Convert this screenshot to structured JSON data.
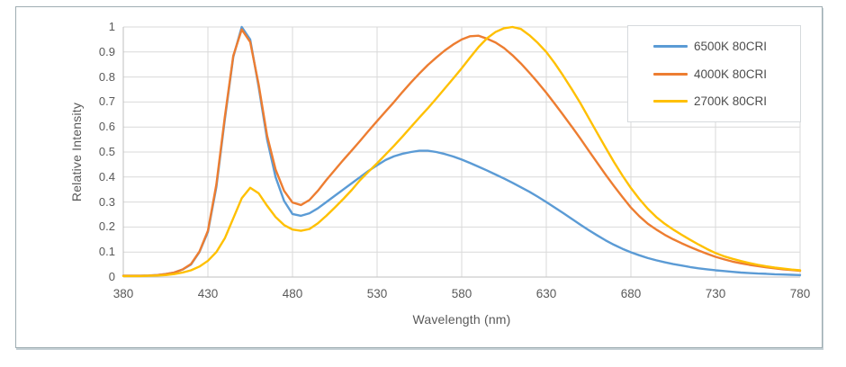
{
  "chart_data": {
    "type": "line",
    "title": "",
    "xlabel": "Wavelength (nm)",
    "ylabel": "Relative Intensity",
    "xlim": [
      380,
      780
    ],
    "ylim": [
      0,
      1
    ],
    "x_step_nm": 5,
    "x_ticks": [
      380,
      430,
      480,
      530,
      580,
      630,
      680,
      730,
      780
    ],
    "y_ticks": [
      "1",
      "0.9",
      "0.8",
      "0.7",
      "0.6",
      "0.5",
      "0.4",
      "0.3",
      "0.2",
      "0.1",
      "0"
    ],
    "grid": true,
    "legend_position": "top-right",
    "style": {
      "grid_color": "#d9d9d9",
      "axis_color": "#bfbfbf",
      "text_color": "#595959",
      "frame_border_color": "#9fadb2",
      "plot_background": "#ffffff"
    },
    "series": [
      {
        "name": "6500K 80CRI",
        "color": "#5B9BD5",
        "values": [
          0.005,
          0.005,
          0.005,
          0.006,
          0.008,
          0.012,
          0.018,
          0.03,
          0.05,
          0.1,
          0.18,
          0.36,
          0.63,
          0.88,
          1.0,
          0.95,
          0.76,
          0.55,
          0.4,
          0.305,
          0.252,
          0.245,
          0.255,
          0.275,
          0.3,
          0.325,
          0.35,
          0.375,
          0.4,
          0.425,
          0.447,
          0.468,
          0.483,
          0.493,
          0.5,
          0.505,
          0.505,
          0.5,
          0.492,
          0.482,
          0.47,
          0.456,
          0.441,
          0.426,
          0.41,
          0.394,
          0.377,
          0.359,
          0.341,
          0.321,
          0.3,
          0.278,
          0.256,
          0.233,
          0.21,
          0.188,
          0.167,
          0.147,
          0.129,
          0.113,
          0.099,
          0.087,
          0.076,
          0.067,
          0.059,
          0.052,
          0.046,
          0.04,
          0.035,
          0.031,
          0.027,
          0.024,
          0.021,
          0.018,
          0.016,
          0.014,
          0.013,
          0.011,
          0.01,
          0.009,
          0.008
        ]
      },
      {
        "name": "4000K 80CRI",
        "color": "#ED7D31",
        "values": [
          0.005,
          0.005,
          0.005,
          0.006,
          0.008,
          0.012,
          0.018,
          0.03,
          0.052,
          0.102,
          0.185,
          0.37,
          0.64,
          0.885,
          0.99,
          0.94,
          0.77,
          0.565,
          0.43,
          0.345,
          0.298,
          0.288,
          0.308,
          0.345,
          0.388,
          0.428,
          0.468,
          0.506,
          0.545,
          0.585,
          0.624,
          0.662,
          0.7,
          0.74,
          0.778,
          0.814,
          0.848,
          0.878,
          0.906,
          0.93,
          0.95,
          0.963,
          0.965,
          0.953,
          0.938,
          0.916,
          0.887,
          0.854,
          0.817,
          0.778,
          0.737,
          0.693,
          0.648,
          0.602,
          0.555,
          0.506,
          0.458,
          0.41,
          0.364,
          0.32,
          0.278,
          0.243,
          0.213,
          0.19,
          0.169,
          0.151,
          0.135,
          0.12,
          0.106,
          0.093,
          0.081,
          0.071,
          0.062,
          0.055,
          0.049,
          0.044,
          0.039,
          0.035,
          0.031,
          0.028,
          0.025
        ]
      },
      {
        "name": "2700K 80CRI",
        "color": "#FFC000",
        "values": [
          0.004,
          0.004,
          0.004,
          0.005,
          0.006,
          0.008,
          0.012,
          0.018,
          0.027,
          0.042,
          0.065,
          0.1,
          0.155,
          0.235,
          0.315,
          0.357,
          0.335,
          0.285,
          0.24,
          0.208,
          0.19,
          0.185,
          0.192,
          0.215,
          0.245,
          0.278,
          0.312,
          0.348,
          0.388,
          0.422,
          0.455,
          0.49,
          0.525,
          0.562,
          0.6,
          0.638,
          0.675,
          0.714,
          0.754,
          0.794,
          0.835,
          0.878,
          0.92,
          0.955,
          0.98,
          0.995,
          1.0,
          0.992,
          0.967,
          0.936,
          0.9,
          0.855,
          0.805,
          0.752,
          0.697,
          0.637,
          0.577,
          0.518,
          0.46,
          0.406,
          0.356,
          0.312,
          0.273,
          0.24,
          0.213,
          0.19,
          0.169,
          0.149,
          0.13,
          0.112,
          0.096,
          0.083,
          0.073,
          0.064,
          0.056,
          0.049,
          0.043,
          0.038,
          0.034,
          0.03,
          0.027
        ]
      }
    ]
  }
}
